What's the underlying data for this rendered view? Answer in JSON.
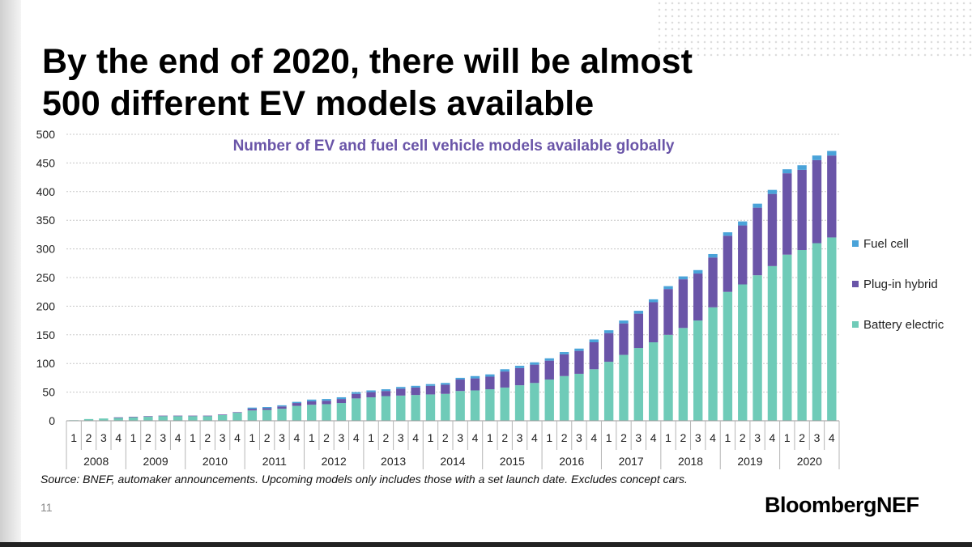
{
  "slide": {
    "title_line1": "By the end of 2020, there will be almost",
    "title_line2": "500 different EV models available",
    "source": "Source: BNEF, automaker announcements. Upcoming models only includes those with a set launch date. Excludes concept cars.",
    "page_number": "11",
    "brand": "BloombergNEF"
  },
  "chart_data": {
    "type": "bar",
    "stacked": true,
    "title": "Number of EV and fuel cell vehicle models available globally",
    "xlabel": "",
    "ylabel": "",
    "ylim": [
      0,
      500
    ],
    "yticks": [
      0,
      50,
      100,
      150,
      200,
      250,
      300,
      350,
      400,
      450,
      500
    ],
    "grid": true,
    "legend_position": "right",
    "quarters": [
      "1",
      "2",
      "3",
      "4"
    ],
    "years": [
      "2008",
      "2009",
      "2010",
      "2011",
      "2012",
      "2013",
      "2014",
      "2015",
      "2016",
      "2017",
      "2018",
      "2019",
      "2020"
    ],
    "categories": [
      "2008 Q1",
      "2008 Q2",
      "2008 Q3",
      "2008 Q4",
      "2009 Q1",
      "2009 Q2",
      "2009 Q3",
      "2009 Q4",
      "2010 Q1",
      "2010 Q2",
      "2010 Q3",
      "2010 Q4",
      "2011 Q1",
      "2011 Q2",
      "2011 Q3",
      "2011 Q4",
      "2012 Q1",
      "2012 Q2",
      "2012 Q3",
      "2012 Q4",
      "2013 Q1",
      "2013 Q2",
      "2013 Q3",
      "2013 Q4",
      "2014 Q1",
      "2014 Q2",
      "2014 Q3",
      "2014 Q4",
      "2015 Q1",
      "2015 Q2",
      "2015 Q3",
      "2015 Q4",
      "2016 Q1",
      "2016 Q2",
      "2016 Q3",
      "2016 Q4",
      "2017 Q1",
      "2017 Q2",
      "2017 Q3",
      "2017 Q4",
      "2018 Q1",
      "2018 Q2",
      "2018 Q3",
      "2018 Q4",
      "2019 Q1",
      "2019 Q2",
      "2019 Q3",
      "2019 Q4",
      "2020 Q1",
      "2020 Q2",
      "2020 Q3",
      "2020 Q4"
    ],
    "series": [
      {
        "name": "Battery electric",
        "color": "#6fcbb8",
        "values": [
          1,
          3,
          4,
          5,
          6,
          7,
          8,
          8,
          8,
          8,
          10,
          14,
          18,
          19,
          21,
          26,
          28,
          29,
          31,
          39,
          41,
          43,
          44,
          45,
          46,
          47,
          52,
          53,
          55,
          58,
          62,
          66,
          72,
          78,
          82,
          90,
          103,
          115,
          127,
          137,
          150,
          162,
          175,
          198,
          225,
          238,
          254,
          270,
          290,
          298,
          310,
          320
        ]
      },
      {
        "name": "Plug-in hybrid",
        "color": "#6a55a8",
        "values": [
          0,
          0,
          0,
          1,
          1,
          1,
          1,
          1,
          1,
          1,
          1,
          1,
          3,
          3,
          4,
          5,
          6,
          6,
          7,
          8,
          9,
          9,
          12,
          13,
          15,
          16,
          20,
          21,
          22,
          28,
          30,
          32,
          33,
          38,
          40,
          47,
          50,
          55,
          60,
          70,
          80,
          85,
          82,
          87,
          98,
          103,
          118,
          126,
          142,
          140,
          145,
          143
        ]
      },
      {
        "name": "Fuel cell",
        "color": "#4aa3d9",
        "values": [
          0,
          0,
          0,
          0,
          0,
          0,
          0,
          0,
          0,
          0,
          0,
          0,
          2,
          2,
          2,
          2,
          3,
          3,
          3,
          3,
          3,
          3,
          3,
          3,
          3,
          3,
          3,
          4,
          4,
          4,
          4,
          4,
          4,
          4,
          4,
          5,
          5,
          5,
          5,
          5,
          5,
          5,
          6,
          6,
          6,
          7,
          7,
          7,
          7,
          8,
          8,
          8
        ]
      }
    ]
  }
}
